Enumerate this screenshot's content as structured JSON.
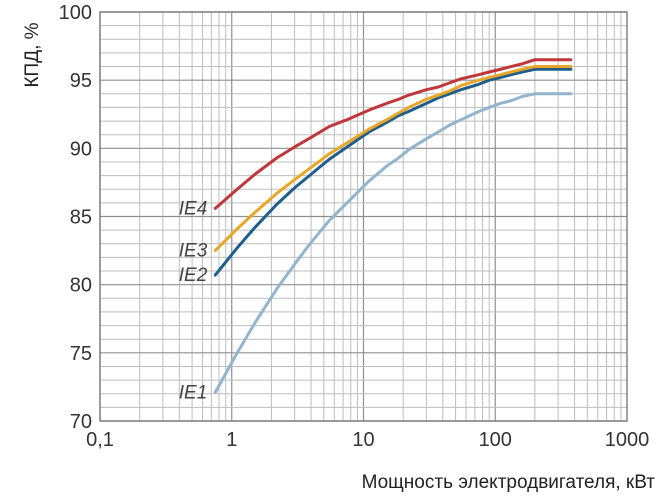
{
  "chart_data": {
    "type": "line",
    "xlabel": "Мощность электродвигателя, кВт",
    "ylabel": "КПД, %",
    "x_scale": "log",
    "xlim": [
      0.1,
      1000
    ],
    "ylim": [
      70,
      100
    ],
    "x_ticks": [
      0.1,
      1,
      10,
      100,
      1000
    ],
    "x_tick_labels": [
      "0,1",
      "1",
      "10",
      "100",
      "1000"
    ],
    "y_ticks": [
      70,
      75,
      80,
      85,
      90,
      95,
      100
    ],
    "y_tick_labels": [
      "70",
      "75",
      "80",
      "85",
      "90",
      "95",
      "100"
    ],
    "y_minor_step": 1,
    "grid": true,
    "legend": "inline labels at left end of each curve",
    "series": [
      {
        "name": "IE1",
        "color": "#92b4cc",
        "x": [
          0.75,
          1.1,
          1.5,
          2.2,
          3,
          4,
          5.5,
          7.5,
          11,
          15,
          18.5,
          22,
          30,
          37,
          45,
          55,
          75,
          90,
          110,
          132,
          160,
          200,
          250,
          315,
          375
        ],
        "y": [
          72.1,
          75.0,
          77.2,
          79.7,
          81.5,
          83.1,
          84.7,
          86.0,
          87.6,
          88.7,
          89.3,
          89.9,
          90.7,
          91.2,
          91.7,
          92.1,
          92.7,
          93.0,
          93.3,
          93.5,
          93.8,
          94.0,
          94.0,
          94.0,
          94.0
        ]
      },
      {
        "name": "IE2",
        "color": "#1f5e8c",
        "x": [
          0.75,
          1.1,
          1.5,
          2.2,
          3,
          4,
          5.5,
          7.5,
          11,
          15,
          18.5,
          22,
          30,
          37,
          45,
          55,
          75,
          90,
          110,
          132,
          160,
          200,
          250,
          315,
          375
        ],
        "y": [
          80.7,
          82.7,
          84.2,
          85.9,
          87.1,
          88.1,
          89.2,
          90.1,
          91.2,
          91.9,
          92.4,
          92.7,
          93.3,
          93.7,
          94.0,
          94.3,
          94.7,
          95.0,
          95.2,
          95.4,
          95.6,
          95.8,
          95.8,
          95.8,
          95.8
        ]
      },
      {
        "name": "IE3",
        "color": "#e8a628",
        "x": [
          0.75,
          1.1,
          1.5,
          2.2,
          3,
          4,
          5.5,
          7.5,
          11,
          15,
          18.5,
          22,
          30,
          37,
          45,
          55,
          75,
          90,
          110,
          132,
          160,
          200,
          250,
          315,
          375
        ],
        "y": [
          82.5,
          84.1,
          85.3,
          86.7,
          87.7,
          88.6,
          89.6,
          90.4,
          91.4,
          92.1,
          92.6,
          93.0,
          93.6,
          93.9,
          94.2,
          94.6,
          95.0,
          95.2,
          95.4,
          95.6,
          95.8,
          96.0,
          96.0,
          96.0,
          96.0
        ]
      },
      {
        "name": "IE4",
        "color": "#c0363a",
        "x": [
          0.75,
          1.1,
          1.5,
          2.2,
          3,
          4,
          5.5,
          7.5,
          11,
          15,
          18.5,
          22,
          30,
          37,
          45,
          55,
          75,
          90,
          110,
          132,
          160,
          200,
          250,
          315,
          375
        ],
        "y": [
          85.6,
          87.0,
          88.1,
          89.3,
          90.1,
          90.8,
          91.6,
          92.1,
          92.8,
          93.3,
          93.6,
          93.9,
          94.3,
          94.5,
          94.8,
          95.1,
          95.4,
          95.6,
          95.8,
          96.0,
          96.2,
          96.5,
          96.5,
          96.5,
          96.5
        ]
      }
    ]
  }
}
